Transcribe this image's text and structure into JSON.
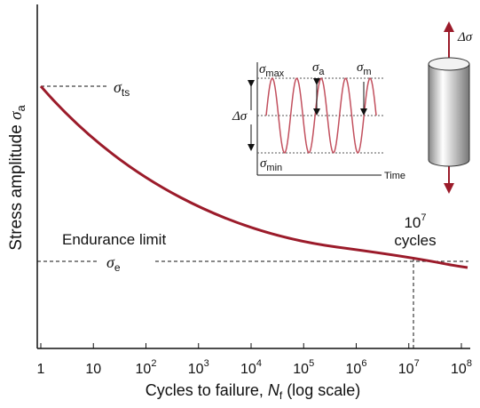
{
  "axes": {
    "y_label": {
      "text": "Stress amplitude ",
      "symbol": "σ",
      "sub": "a"
    },
    "x_label": {
      "text": "Cycles to failure, ",
      "symbol": "N",
      "sub": "f",
      "suffix": " (log scale)"
    },
    "x_ticks": [
      {
        "text": "1"
      },
      {
        "text": "10"
      },
      {
        "text": "10",
        "sup": "2"
      },
      {
        "text": "10",
        "sup": "3"
      },
      {
        "text": "10",
        "sup": "4"
      },
      {
        "text": "10",
        "sup": "5"
      },
      {
        "text": "10",
        "sup": "6"
      },
      {
        "text": "10",
        "sup": "7"
      },
      {
        "text": "10",
        "sup": "8"
      }
    ]
  },
  "annotations": {
    "sigma_ts": {
      "symbol": "σ",
      "sub": "ts"
    },
    "sigma_e": {
      "symbol": "σ",
      "sub": "e"
    },
    "endurance_limit": "Endurance limit",
    "cycles_marker": {
      "text": "10",
      "sup": "7",
      "line2": "cycles"
    }
  },
  "inset": {
    "sigma_max": {
      "symbol": "σ",
      "sub": "max"
    },
    "sigma_a": {
      "symbol": "σ",
      "sub": "a"
    },
    "sigma_m": {
      "symbol": "σ",
      "sub": "m"
    },
    "delta_sigma": "Δσ",
    "sigma_min": {
      "symbol": "σ",
      "sub": "min"
    },
    "time": "Time"
  },
  "specimen": {
    "delta_sigma": "Δσ"
  }
}
